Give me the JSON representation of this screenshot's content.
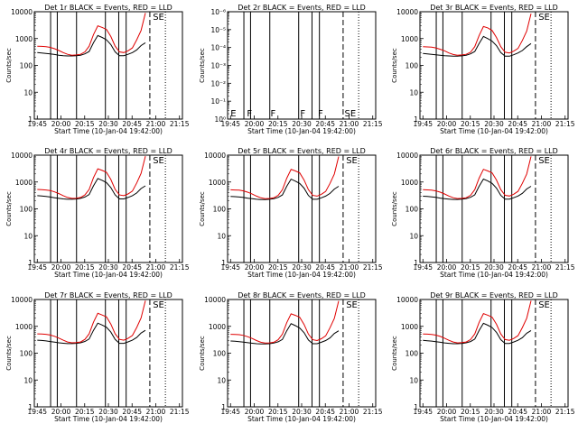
{
  "chart_data": [
    {
      "type": "line",
      "title": "Det 1r BLACK = Events, RED = LLD",
      "xlabel": "Start Time (10-Jan-04 19:42:00)",
      "ylabel": "Counts/sec",
      "x_ticks": [
        "19:45",
        "20:00",
        "20:15",
        "20:30",
        "20:45",
        "21:00",
        "21:15"
      ],
      "y_ticks": [
        "1",
        "10",
        "100",
        "1000",
        "10000"
      ],
      "ylim": [
        1,
        10000
      ],
      "y_scale": "log",
      "segment_markers": [
        "SE"
      ],
      "series": [
        {
          "name": "BLACK = Events",
          "color": "#000000",
          "values": [
            300,
            290,
            280,
            270,
            255,
            240,
            230,
            225,
            225,
            230,
            240,
            270,
            330,
            700,
            1300,
            1100,
            900,
            600,
            320,
            230,
            230,
            260,
            300,
            380,
            550,
            700
          ]
        },
        {
          "name": "RED = LLD",
          "color": "#e00000",
          "values": [
            520,
            510,
            500,
            470,
            420,
            360,
            300,
            260,
            240,
            245,
            260,
            320,
            520,
            1400,
            3000,
            2600,
            2200,
            1200,
            520,
            320,
            300,
            350,
            450,
            900,
            2000,
            9000
          ]
        }
      ]
    },
    {
      "type": "line",
      "title": "Det 2r BLACK = Events, RED = LLD",
      "xlabel": "Start Time (10-Jan-04 19:42:00)",
      "ylabel": "Counts/sec",
      "x_ticks": [
        "19:45",
        "20:00",
        "20:15",
        "20:30",
        "20:45",
        "21:00",
        "21:15"
      ],
      "y_ticks": [
        "10⁰",
        "10⁻¹",
        "10⁻²",
        "10⁻³",
        "10⁻⁴",
        "10⁻⁵",
        "10⁻⁶"
      ],
      "ylim": [
        1e-06,
        1
      ],
      "y_scale": "log",
      "segment_markers": [
        "E",
        "F",
        "F",
        "F",
        "F",
        "SE"
      ],
      "series": []
    },
    {
      "type": "line",
      "title": "Det 3r BLACK = Events, RED = LLD",
      "xlabel": "Start Time (10-Jan-04 19:42:00)",
      "ylabel": "Counts/sec",
      "x_ticks": [
        "19:45",
        "20:00",
        "20:15",
        "20:30",
        "20:45",
        "21:00",
        "21:15"
      ],
      "y_ticks": [
        "1",
        "10",
        "100",
        "1000",
        "10000"
      ],
      "ylim": [
        1,
        10000
      ],
      "y_scale": "log",
      "segment_markers": [
        "SE"
      ],
      "series": [
        {
          "name": "BLACK = Events",
          "color": "#000000",
          "values": [
            280,
            270,
            260,
            250,
            240,
            230,
            225,
            220,
            222,
            228,
            240,
            270,
            330,
            650,
            1200,
            1000,
            800,
            550,
            300,
            220,
            220,
            250,
            290,
            360,
            500,
            650
          ]
        },
        {
          "name": "RED = LLD",
          "color": "#e00000",
          "values": [
            500,
            490,
            480,
            450,
            400,
            350,
            290,
            255,
            240,
            245,
            260,
            310,
            500,
            1300,
            2800,
            2500,
            2000,
            1100,
            500,
            310,
            290,
            340,
            430,
            850,
            1900,
            8500
          ]
        }
      ]
    },
    {
      "type": "line",
      "title": "Det 4r BLACK = Events, RED = LLD",
      "xlabel": "Start Time (10-Jan-04 19:42:00)",
      "ylabel": "Counts/sec",
      "x_ticks": [
        "19:45",
        "20:00",
        "20:15",
        "20:30",
        "20:45",
        "21:00",
        "21:15"
      ],
      "y_ticks": [
        "1",
        "10",
        "100",
        "1000",
        "10000"
      ],
      "ylim": [
        1,
        10000
      ],
      "y_scale": "log",
      "segment_markers": [
        "SE"
      ],
      "series": [
        {
          "name": "BLACK = Events",
          "color": "#000000",
          "values": [
            310,
            300,
            290,
            275,
            260,
            245,
            235,
            228,
            228,
            233,
            245,
            275,
            340,
            720,
            1350,
            1150,
            950,
            620,
            330,
            235,
            235,
            265,
            310,
            390,
            570,
            720
          ]
        },
        {
          "name": "RED = LLD",
          "color": "#e00000",
          "values": [
            530,
            520,
            505,
            480,
            430,
            370,
            310,
            265,
            245,
            250,
            265,
            330,
            530,
            1450,
            3100,
            2700,
            2300,
            1250,
            530,
            330,
            310,
            360,
            460,
            920,
            2100,
            9200
          ]
        }
      ]
    },
    {
      "type": "line",
      "title": "Det 5r BLACK = Events, RED = LLD",
      "xlabel": "Start Time (10-Jan-04 19:42:00)",
      "ylabel": "Counts/sec",
      "x_ticks": [
        "19:45",
        "20:00",
        "20:15",
        "20:30",
        "20:45",
        "21:00",
        "21:15"
      ],
      "y_ticks": [
        "1",
        "10",
        "100",
        "1000",
        "10000"
      ],
      "ylim": [
        1,
        10000
      ],
      "y_scale": "log",
      "segment_markers": [
        "SE"
      ],
      "series": [
        {
          "name": "BLACK = Events",
          "color": "#000000",
          "values": [
            290,
            285,
            275,
            265,
            250,
            238,
            228,
            222,
            222,
            228,
            240,
            268,
            330,
            690,
            1280,
            1080,
            880,
            590,
            315,
            228,
            228,
            258,
            298,
            375,
            545,
            690
          ]
        },
        {
          "name": "RED = LLD",
          "color": "#e00000",
          "values": [
            510,
            505,
            495,
            465,
            415,
            355,
            298,
            258,
            240,
            244,
            258,
            318,
            515,
            1380,
            2950,
            2580,
            2180,
            1180,
            515,
            318,
            298,
            348,
            445,
            890,
            1980,
            8900
          ]
        }
      ]
    },
    {
      "type": "line",
      "title": "Det 6r BLACK = Events, RED = LLD",
      "xlabel": "Start Time (10-Jan-04 19:42:00)",
      "ylabel": "Counts/sec",
      "x_ticks": [
        "19:45",
        "20:00",
        "20:15",
        "20:30",
        "20:45",
        "21:00",
        "21:15"
      ],
      "y_ticks": [
        "1",
        "10",
        "100",
        "1000",
        "10000"
      ],
      "ylim": [
        1,
        10000
      ],
      "y_scale": "log",
      "segment_markers": [
        "SE"
      ],
      "series": [
        {
          "name": "BLACK = Events",
          "color": "#000000",
          "values": [
            295,
            288,
            278,
            268,
            252,
            240,
            230,
            224,
            224,
            230,
            242,
            270,
            332,
            695,
            1290,
            1090,
            890,
            595,
            318,
            230,
            230,
            260,
            300,
            378,
            548,
            695
          ]
        },
        {
          "name": "RED = LLD",
          "color": "#e00000",
          "values": [
            515,
            508,
            498,
            468,
            418,
            358,
            300,
            260,
            242,
            246,
            260,
            320,
            518,
            1390,
            2970,
            2590,
            2190,
            1190,
            518,
            320,
            300,
            350,
            448,
            895,
            1990,
            8950
          ]
        }
      ]
    },
    {
      "type": "line",
      "title": "Det 7r BLACK = Events, RED = LLD",
      "xlabel": "Start Time (10-Jan-04 19:42:00)",
      "ylabel": "Counts/sec",
      "x_ticks": [
        "19:45",
        "20:00",
        "20:15",
        "20:30",
        "20:45",
        "21:00",
        "21:15"
      ],
      "y_ticks": [
        "1",
        "10",
        "100",
        "1000",
        "10000"
      ],
      "ylim": [
        1,
        10000
      ],
      "y_scale": "log",
      "segment_markers": [
        "SE"
      ],
      "series": [
        {
          "name": "BLACK = Events",
          "color": "#000000",
          "values": [
            305,
            298,
            286,
            272,
            258,
            244,
            234,
            227,
            227,
            232,
            244,
            274,
            338,
            710,
            1320,
            1120,
            920,
            610,
            325,
            233,
            233,
            263,
            305,
            385,
            560,
            710
          ]
        },
        {
          "name": "RED = LLD",
          "color": "#e00000",
          "values": [
            525,
            515,
            503,
            475,
            425,
            365,
            305,
            262,
            243,
            248,
            262,
            326,
            525,
            1420,
            3050,
            2650,
            2250,
            1220,
            525,
            326,
            305,
            355,
            455,
            910,
            2050,
            9100
          ]
        }
      ]
    },
    {
      "type": "line",
      "title": "Det 8r BLACK = Events, RED = LLD",
      "xlabel": "Start Time (10-Jan-04 19:42:00)",
      "ylabel": "Counts/sec",
      "x_ticks": [
        "19:45",
        "20:00",
        "20:15",
        "20:30",
        "20:45",
        "21:00",
        "21:15"
      ],
      "y_ticks": [
        "1",
        "10",
        "100",
        "1000",
        "10000"
      ],
      "ylim": [
        1,
        10000
      ],
      "y_scale": "log",
      "segment_markers": [
        "SE"
      ],
      "series": [
        {
          "name": "BLACK = Events",
          "color": "#000000",
          "values": [
            285,
            278,
            268,
            258,
            245,
            234,
            226,
            220,
            220,
            226,
            238,
            265,
            325,
            680,
            1260,
            1060,
            860,
            580,
            310,
            225,
            225,
            255,
            295,
            370,
            540,
            680
          ]
        },
        {
          "name": "RED = LLD",
          "color": "#e00000",
          "values": [
            505,
            498,
            488,
            460,
            410,
            352,
            296,
            256,
            238,
            242,
            256,
            316,
            512,
            1370,
            2930,
            2560,
            2160,
            1170,
            512,
            316,
            296,
            346,
            442,
            885,
            1970,
            8850
          ]
        }
      ]
    },
    {
      "type": "line",
      "title": "Det 9r BLACK = Events, RED = LLD",
      "xlabel": "Start Time (10-Jan-04 19:42:00)",
      "ylabel": "Counts/sec",
      "x_ticks": [
        "19:45",
        "20:00",
        "20:15",
        "20:30",
        "20:45",
        "21:00",
        "21:15"
      ],
      "y_ticks": [
        "1",
        "10",
        "100",
        "1000",
        "10000"
      ],
      "ylim": [
        1,
        10000
      ],
      "y_scale": "log",
      "segment_markers": [
        "SE"
      ],
      "series": [
        {
          "name": "BLACK = Events",
          "color": "#000000",
          "values": [
            300,
            292,
            282,
            270,
            256,
            242,
            232,
            226,
            226,
            231,
            243,
            272,
            335,
            700,
            1300,
            1100,
            900,
            600,
            320,
            231,
            231,
            261,
            302,
            380,
            552,
            700
          ]
        },
        {
          "name": "RED = LLD",
          "color": "#e00000",
          "values": [
            520,
            512,
            500,
            472,
            422,
            362,
            302,
            261,
            242,
            247,
            261,
            322,
            520,
            1400,
            3000,
            2600,
            2200,
            1200,
            520,
            322,
            302,
            352,
            450,
            900,
            2000,
            9000
          ]
        }
      ]
    }
  ]
}
